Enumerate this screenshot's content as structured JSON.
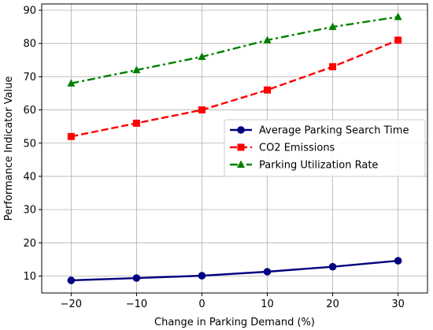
{
  "chart_data": {
    "type": "line",
    "xlabel": "Change in Parking Demand (%)",
    "ylabel": "Performance Indicator Value",
    "x": [
      -20,
      -10,
      0,
      10,
      20,
      30
    ],
    "xticks": [
      -20,
      -10,
      0,
      10,
      20,
      30
    ],
    "xtick_labels": [
      "−20",
      "−10",
      "0",
      "10",
      "20",
      "30"
    ],
    "yticks": [
      10,
      20,
      30,
      40,
      50,
      60,
      70,
      80,
      90
    ],
    "xlim": [
      -24.5,
      34.5
    ],
    "ylim": [
      4.9,
      91.9
    ],
    "grid": true,
    "legend_position": "center-right",
    "series": [
      {
        "name": "Average Parking Search Time",
        "values": [
          8.7,
          9.4,
          10.1,
          11.3,
          12.8,
          14.6
        ],
        "color": "#000080",
        "marker": "circle",
        "line_style": "solid"
      },
      {
        "name": "CO2 Emissions",
        "values": [
          52,
          56,
          60,
          66,
          73,
          81
        ],
        "color": "#ff0000",
        "marker": "square",
        "line_style": "dashed"
      },
      {
        "name": "Parking Utilization Rate",
        "values": [
          68,
          72,
          76,
          81,
          85,
          88
        ],
        "color": "#008000",
        "marker": "triangle",
        "line_style": "dashdot"
      }
    ]
  }
}
